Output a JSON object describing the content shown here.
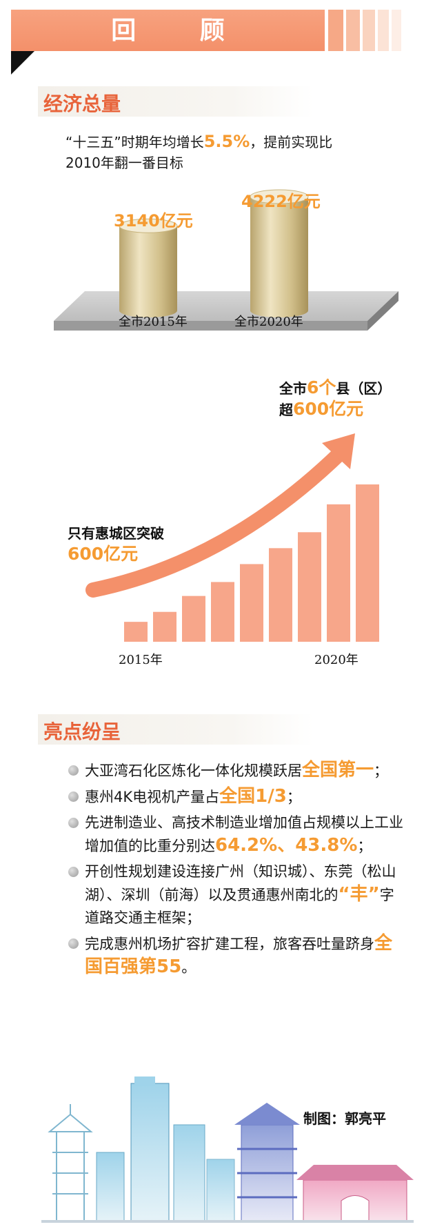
{
  "header": {
    "title": "回 顾"
  },
  "section1": {
    "heading": "经济总量",
    "growth_prefix": "“十三五”时期年均增长",
    "growth_rate": "5.5%",
    "growth_suffix": "，提前实现比",
    "growth_line2": "2010年翻一番目标",
    "bars": [
      {
        "value_label": "3140亿元",
        "year_label": "全市2015年",
        "value": 3140
      },
      {
        "value_label": "4222亿元",
        "year_label": "全市2020年",
        "value": 4222
      }
    ]
  },
  "chart_data": {
    "type": "bar",
    "categories": [
      "2015年",
      "",
      "",
      "",
      "",
      "",
      "",
      "",
      "2020年"
    ],
    "values": [
      1,
      1.5,
      2.3,
      3,
      3.9,
      4.7,
      5.5,
      6.9,
      7.9
    ],
    "start_note_line1": "只有惠城区突破",
    "start_note_line2": "600亿元",
    "end_note_prefix": "全市",
    "end_note_count": "6个",
    "end_note_suffix": "县（区）",
    "end_note_line2_prefix": "超",
    "end_note_line2_value": "600亿元",
    "xlabel_start": "2015年",
    "xlabel_end": "2020年"
  },
  "section2": {
    "heading": "亮点纷呈",
    "items": [
      {
        "text": "大亚湾石化区炼化一体化规模跃居",
        "em": "全国第一",
        "tail": "；"
      },
      {
        "text": "惠州4K电视机产量占",
        "em": "全国1/3",
        "tail": "；"
      },
      {
        "text": "先进制造业、高技术制造业增加值占规模以上工业增加值的比重分别达",
        "em": "64.2%、43.8%",
        "tail": "；"
      },
      {
        "text": "开创性规划建设连接广州（知识城）、东莞（松山湖）、深圳（前海）以及贯通惠州南北的",
        "em": "“丰”",
        "tail": "字道路交通主框架；"
      },
      {
        "text": "完成惠州机场扩容扩建工程，旅客吞吐量跻身",
        "em": "全国百强第55",
        "tail": "。"
      }
    ]
  },
  "credit": "制图：郭亮平",
  "colors": {
    "accent": "#f4906a",
    "highlight": "#f59b32",
    "bar": "#f7a68a",
    "cylinder": "#d8c9a0"
  }
}
